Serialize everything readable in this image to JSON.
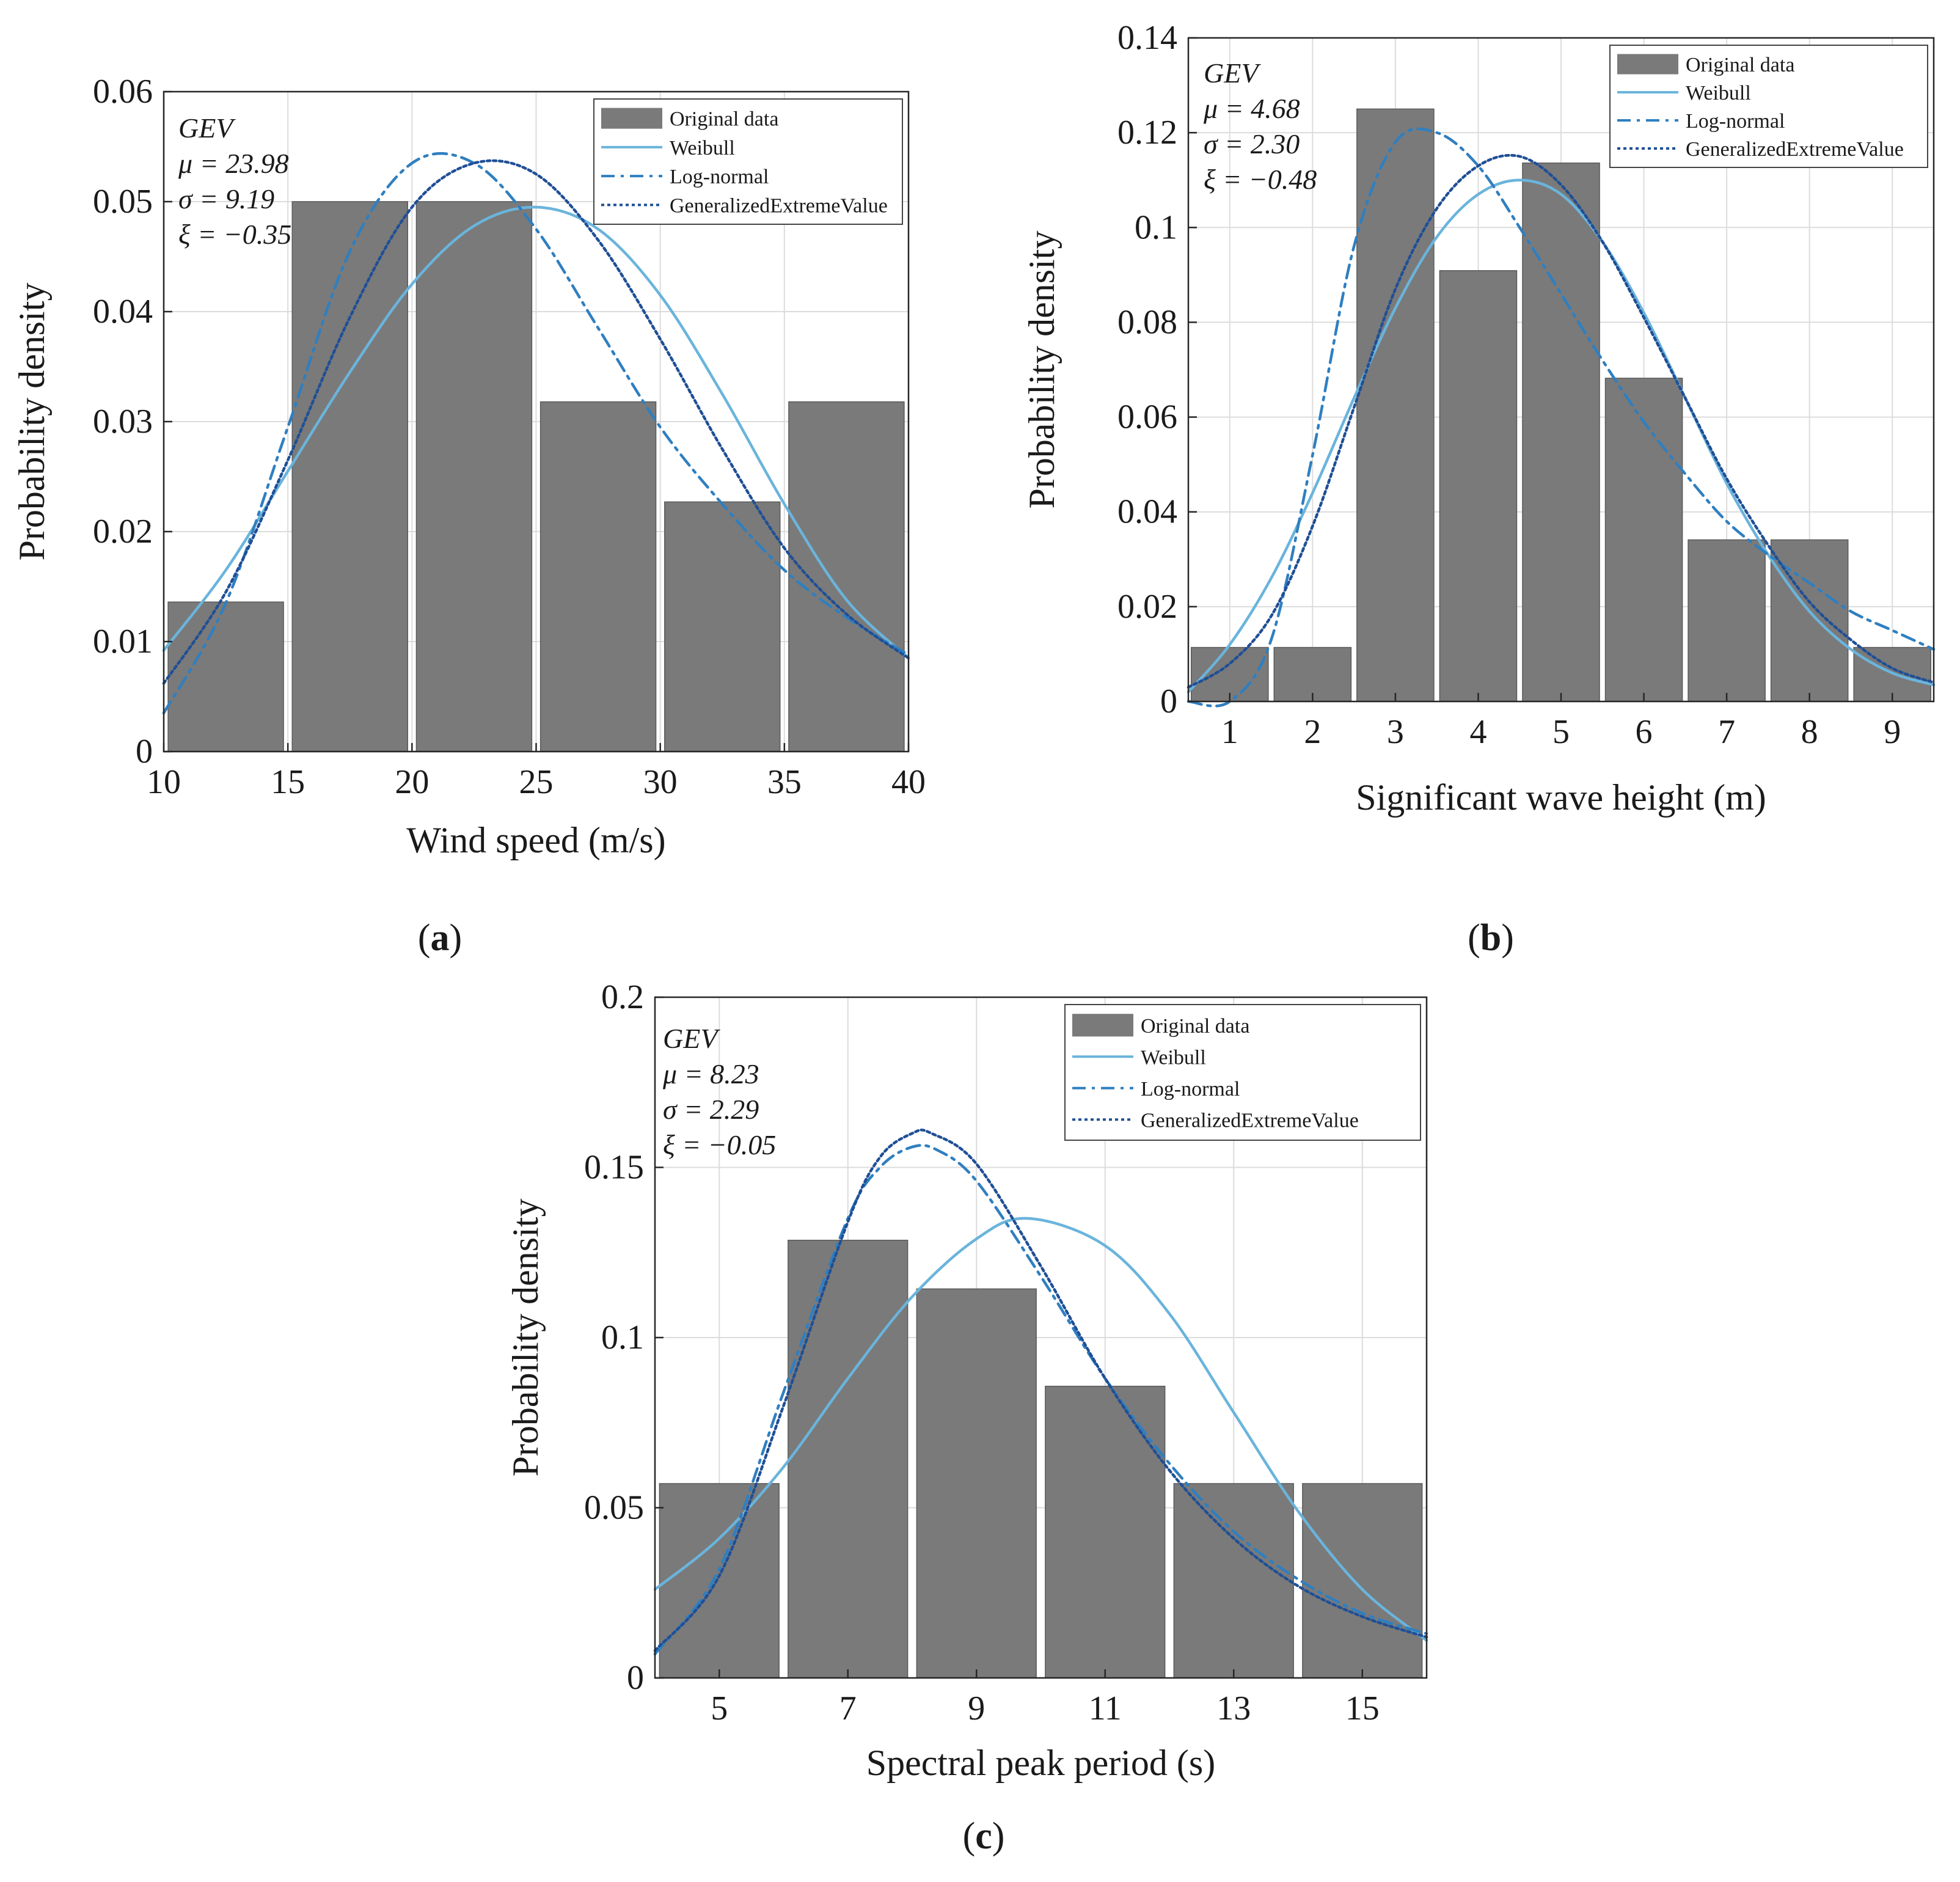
{
  "figure": {
    "captions": [
      "a",
      "b",
      "c"
    ]
  },
  "colors": {
    "bar_fill": "#7a7a7a",
    "bar_edge": "#ffffff",
    "weibull": "#6ab4dc",
    "lognormal": "#2f7fc0",
    "gev": "#1f4f96",
    "grid": "#dcdcdc",
    "axis": "#262626"
  },
  "chart_data": [
    {
      "id": "a",
      "type": "bar",
      "title": "",
      "xlabel": "Wind speed (m/s)",
      "ylabel": "Probability  density",
      "xlim": [
        10,
        40
      ],
      "ylim": [
        0,
        0.06
      ],
      "xticks": [
        "10",
        "15",
        "20",
        "25",
        "30",
        "35",
        "40"
      ],
      "xtick_values": [
        10,
        15,
        20,
        25,
        30,
        35,
        40
      ],
      "yticks": [
        "0",
        "0.01",
        "0.02",
        "0.03",
        "0.04",
        "0.05",
        "0.06"
      ],
      "ytick_values": [
        0,
        0.01,
        0.02,
        0.03,
        0.04,
        0.05,
        0.06
      ],
      "bin_edges": [
        10,
        15,
        20,
        25,
        30,
        35,
        40
      ],
      "values": [
        0.0136,
        0.05,
        0.05,
        0.0318,
        0.0227,
        0.0318
      ],
      "legend_position": "top-right",
      "legend": [
        "Original data",
        "Weibull",
        "Log-normal",
        "GeneralizedExtremeValue"
      ],
      "annotation": [
        "GEV",
        "μ = 23.98",
        "σ = 9.19",
        "ξ = −0.35"
      ],
      "series": [
        {
          "name": "Weibull",
          "style": "solid",
          "x": [
            10,
            12.5,
            15,
            17.5,
            20,
            22.5,
            25,
            27.5,
            30,
            32.5,
            35,
            37.5,
            40
          ],
          "values": [
            0.0092,
            0.0165,
            0.0255,
            0.0345,
            0.0425,
            0.0478,
            0.0495,
            0.0475,
            0.0415,
            0.0325,
            0.0225,
            0.0138,
            0.0085
          ]
        },
        {
          "name": "Log-normal",
          "style": "dashdot",
          "x": [
            10,
            12.5,
            15,
            17.5,
            20,
            22.5,
            25,
            27.5,
            30,
            32.5,
            35,
            37.5,
            40
          ],
          "values": [
            0.0035,
            0.0135,
            0.0295,
            0.0455,
            0.0535,
            0.0535,
            0.0475,
            0.0385,
            0.0295,
            0.0225,
            0.0165,
            0.0122,
            0.0088
          ]
        },
        {
          "name": "GeneralizedExtremeValue",
          "style": "dotted",
          "x": [
            10,
            12.5,
            15,
            17.5,
            20,
            22.5,
            25,
            27.5,
            30,
            32.5,
            35,
            37.5,
            40
          ],
          "values": [
            0.0062,
            0.0145,
            0.0265,
            0.0395,
            0.0495,
            0.0535,
            0.0525,
            0.0465,
            0.0375,
            0.0275,
            0.0185,
            0.0125,
            0.0085
          ]
        }
      ]
    },
    {
      "id": "b",
      "type": "bar",
      "title": "",
      "xlabel": "Significant wave  height (m)",
      "ylabel": "Probability  density",
      "xlim": [
        0.5,
        9.5
      ],
      "ylim": [
        0,
        0.14
      ],
      "xticks": [
        "1",
        "2",
        "3",
        "4",
        "5",
        "6",
        "7",
        "8",
        "9"
      ],
      "xtick_values": [
        1,
        2,
        3,
        4,
        5,
        6,
        7,
        8,
        9
      ],
      "yticks": [
        "0",
        "0.02",
        "0.04",
        "0.06",
        "0.08",
        "0.1",
        "0.12",
        "0.14"
      ],
      "ytick_values": [
        0,
        0.02,
        0.04,
        0.06,
        0.08,
        0.1,
        0.12,
        0.14
      ],
      "bin_edges": [
        0.5,
        1.5,
        2.5,
        3.5,
        4.5,
        5.5,
        6.5,
        7.5,
        8.5,
        9.5
      ],
      "values": [
        0.0114,
        0.0114,
        0.125,
        0.0909,
        0.1136,
        0.0682,
        0.0341,
        0.0341,
        0.0114
      ],
      "legend_position": "top-right",
      "legend": [
        "Original data",
        "Weibull",
        "Log-normal",
        "GeneralizedExtremeValue"
      ],
      "annotation": [
        "GEV",
        "μ = 4.68",
        "σ = 2.30",
        "ξ = −0.48"
      ],
      "series": [
        {
          "name": "Weibull",
          "style": "solid",
          "x": [
            0.5,
            1,
            1.5,
            2,
            2.5,
            3,
            3.5,
            4,
            4.5,
            5,
            5.5,
            6,
            6.5,
            7,
            7.5,
            8,
            8.5,
            9,
            9.5
          ],
          "values": [
            0.002,
            0.012,
            0.026,
            0.044,
            0.064,
            0.083,
            0.098,
            0.107,
            0.11,
            0.107,
            0.097,
            0.082,
            0.064,
            0.046,
            0.031,
            0.019,
            0.011,
            0.006,
            0.0035
          ]
        },
        {
          "name": "Log-normal",
          "style": "dashdot",
          "x": [
            0.5,
            1,
            1.5,
            2,
            2.5,
            3,
            3.5,
            4,
            4.5,
            5,
            5.5,
            6,
            6.5,
            7,
            7.5,
            8,
            8.5,
            9,
            9.5
          ],
          "values": [
            0.0,
            0.0,
            0.013,
            0.052,
            0.096,
            0.118,
            0.12,
            0.113,
            0.1,
            0.086,
            0.072,
            0.059,
            0.048,
            0.038,
            0.031,
            0.025,
            0.019,
            0.015,
            0.011
          ]
        },
        {
          "name": "GeneralizedExtremeValue",
          "style": "dotted",
          "x": [
            0.5,
            1,
            1.5,
            2,
            2.5,
            3,
            3.5,
            4,
            4.5,
            5,
            5.5,
            6,
            6.5,
            7,
            7.5,
            8,
            8.5,
            9,
            9.5
          ],
          "values": [
            0.003,
            0.008,
            0.018,
            0.037,
            0.062,
            0.087,
            0.104,
            0.113,
            0.115,
            0.109,
            0.097,
            0.081,
            0.064,
            0.047,
            0.033,
            0.021,
            0.013,
            0.007,
            0.004
          ]
        }
      ]
    },
    {
      "id": "c",
      "type": "bar",
      "title": "",
      "xlabel": "Spectral peak period (s)",
      "ylabel": "Probability density",
      "xlim": [
        4,
        16
      ],
      "ylim": [
        0,
        0.2
      ],
      "xticks": [
        "5",
        "7",
        "9",
        "11",
        "13",
        "15"
      ],
      "xtick_values": [
        5,
        7,
        9,
        11,
        13,
        15
      ],
      "yticks": [
        "0",
        "0.05",
        "0.1",
        "0.15",
        "0.2"
      ],
      "ytick_values": [
        0,
        0.05,
        0.1,
        0.15,
        0.2
      ],
      "bin_edges": [
        4,
        6,
        8,
        10,
        12,
        14,
        16
      ],
      "values": [
        0.0571,
        0.1286,
        0.1143,
        0.0857,
        0.0571,
        0.0571
      ],
      "legend_position": "top-right",
      "legend": [
        "Original data",
        "Weibull",
        "Log-normal",
        "GeneralizedExtremeValue"
      ],
      "annotation": [
        "GEV",
        "μ = 8.23",
        "σ = 2.29",
        "ξ = −0.05"
      ],
      "series": [
        {
          "name": "Weibull",
          "style": "solid",
          "x": [
            4,
            5,
            6,
            7,
            8,
            9,
            9.8,
            11,
            12,
            13,
            14,
            15,
            16
          ],
          "values": [
            0.026,
            0.041,
            0.062,
            0.088,
            0.112,
            0.129,
            0.135,
            0.127,
            0.107,
            0.078,
            0.049,
            0.026,
            0.011
          ]
        },
        {
          "name": "Log-normal",
          "style": "dashdot",
          "x": [
            4,
            5,
            6,
            7,
            7.5,
            8,
            8.4,
            9,
            10,
            11,
            12,
            13,
            14,
            15,
            16
          ],
          "values": [
            0.007,
            0.032,
            0.084,
            0.135,
            0.15,
            0.156,
            0.155,
            0.146,
            0.118,
            0.088,
            0.063,
            0.043,
            0.029,
            0.019,
            0.013
          ]
        },
        {
          "name": "GeneralizedExtremeValue",
          "style": "dotted",
          "x": [
            4,
            5,
            6,
            7,
            7.5,
            8,
            8.3,
            9,
            10,
            11,
            12,
            13,
            14,
            15,
            16
          ],
          "values": [
            0.008,
            0.03,
            0.08,
            0.134,
            0.153,
            0.16,
            0.16,
            0.151,
            0.121,
            0.088,
            0.061,
            0.041,
            0.027,
            0.018,
            0.012
          ]
        }
      ]
    }
  ]
}
